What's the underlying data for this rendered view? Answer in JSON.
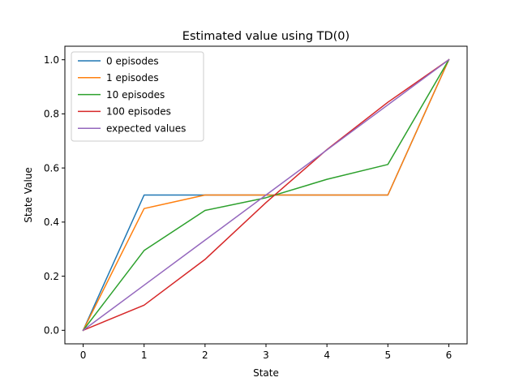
{
  "chart_data": {
    "type": "line",
    "title": "Estimated value using TD(0)",
    "xlabel": "State",
    "ylabel": "State Value",
    "xlim": [
      -0.3,
      6.3
    ],
    "ylim": [
      -0.05,
      1.05
    ],
    "xticks": [
      0,
      1,
      2,
      3,
      4,
      5,
      6
    ],
    "yticks": [
      0.0,
      0.2,
      0.4,
      0.6,
      0.8,
      1.0
    ],
    "ytick_labels": [
      "0.0",
      "0.2",
      "0.4",
      "0.6",
      "0.8",
      "1.0"
    ],
    "legend_position": "upper-left",
    "grid": false,
    "x": [
      0,
      1,
      2,
      3,
      4,
      5,
      6
    ],
    "series": [
      {
        "name": "0 episodes",
        "color": "#1f77b4",
        "values": [
          0.0,
          0.5,
          0.5,
          0.5,
          0.5,
          0.5,
          1.0
        ]
      },
      {
        "name": "1 episodes",
        "color": "#ff7f0e",
        "values": [
          0.0,
          0.45,
          0.5,
          0.5,
          0.5,
          0.5,
          1.0
        ]
      },
      {
        "name": "10 episodes",
        "color": "#2ca02c",
        "values": [
          0.0,
          0.295,
          0.443,
          0.49,
          0.558,
          0.613,
          1.0
        ]
      },
      {
        "name": "100 episodes",
        "color": "#d62728",
        "values": [
          0.0,
          0.093,
          0.262,
          0.472,
          0.668,
          0.843,
          1.0
        ]
      },
      {
        "name": "expected values",
        "color": "#9467bd",
        "values": [
          0.0,
          0.1667,
          0.3333,
          0.5,
          0.6667,
          0.8333,
          1.0
        ]
      }
    ]
  }
}
